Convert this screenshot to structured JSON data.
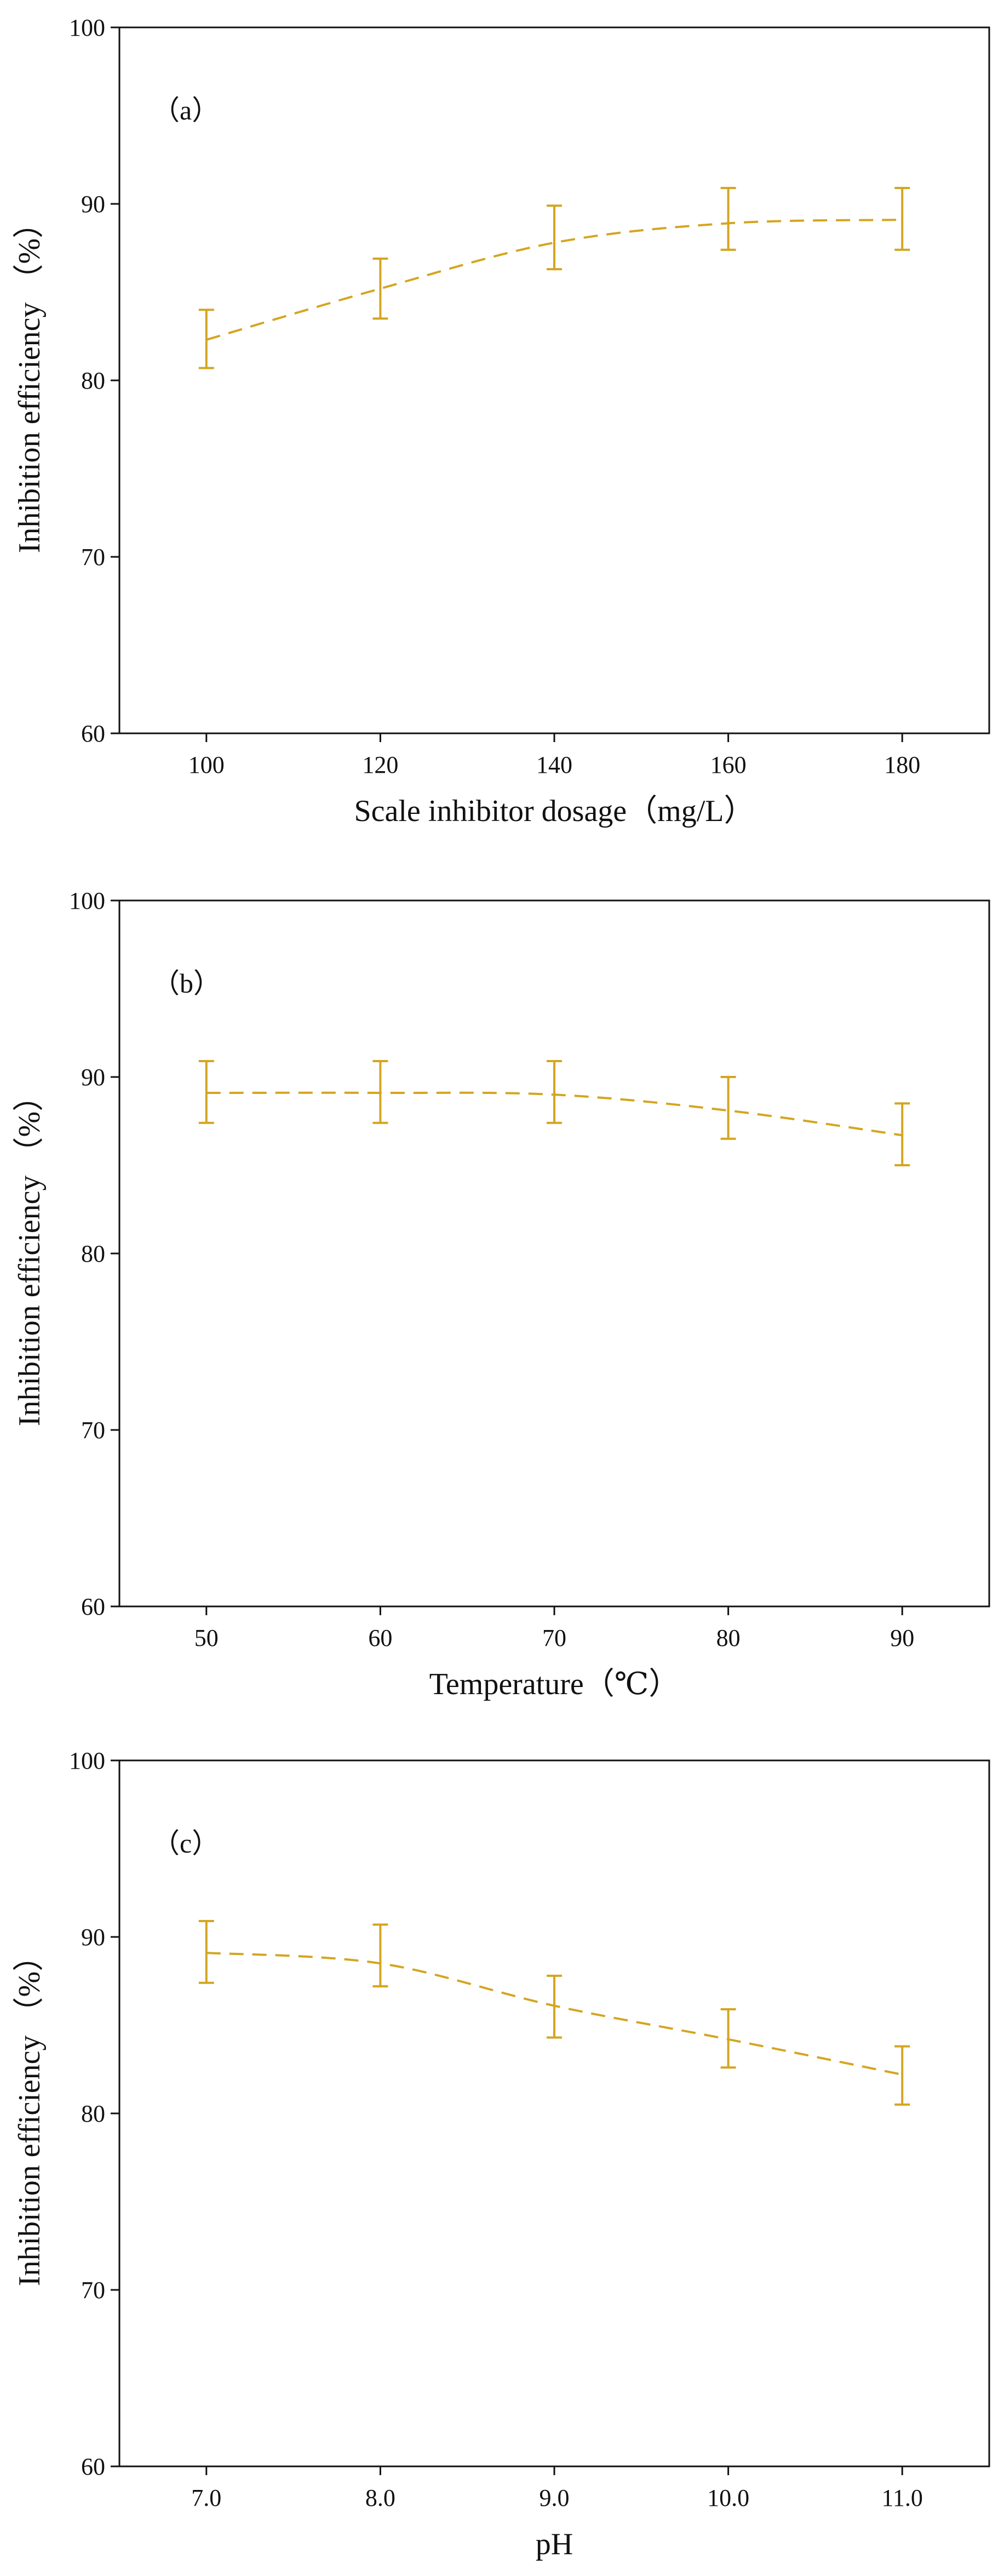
{
  "figure": {
    "line_color": "#D4A520",
    "axis_color": "#111111"
  },
  "chart_data": [
    {
      "type": "line",
      "panel_label": "（a）",
      "title": "",
      "xlabel": "Scale inhibitor dosage（mg/L）",
      "ylabel": "Inhibition efficiency （%）",
      "categories": [
        "100",
        "120",
        "140",
        "160",
        "180"
      ],
      "x": [
        100,
        120,
        140,
        160,
        180
      ],
      "xlim": [
        90,
        190
      ],
      "ylim": [
        60,
        100
      ],
      "yticks": [
        "60",
        "70",
        "80",
        "90",
        "100"
      ],
      "yvalues": [
        60,
        70,
        80,
        90,
        100
      ],
      "series": [
        {
          "name": "Inhibition efficiency",
          "values": [
            82.3,
            85.2,
            87.8,
            89.0,
            89.1
          ],
          "err_low": [
            80.7,
            83.5,
            86.3,
            87.4,
            87.4
          ],
          "err_high": [
            84.0,
            86.9,
            89.9,
            90.9,
            90.9
          ],
          "curve": [
            82.3,
            85.2,
            87.8,
            88.9,
            89.1
          ],
          "style": "dashed"
        }
      ]
    },
    {
      "type": "line",
      "panel_label": "（b）",
      "title": "",
      "xlabel": "Temperature（℃）",
      "ylabel": "Inhibition efficiency （%）",
      "categories": [
        "50",
        "60",
        "70",
        "80",
        "90"
      ],
      "x": [
        50,
        60,
        70,
        80,
        90
      ],
      "xlim": [
        45,
        95
      ],
      "ylim": [
        60,
        100
      ],
      "yticks": [
        "60",
        "70",
        "80",
        "90",
        "100"
      ],
      "yvalues": [
        60,
        70,
        80,
        90,
        100
      ],
      "series": [
        {
          "name": "Inhibition efficiency",
          "values": [
            89.1,
            89.1,
            89.0,
            88.2,
            86.7
          ],
          "err_low": [
            87.4,
            87.4,
            87.4,
            86.5,
            85.0
          ],
          "err_high": [
            90.9,
            90.9,
            90.9,
            90.0,
            88.5
          ],
          "curve": [
            89.1,
            89.1,
            89.0,
            88.1,
            86.7
          ],
          "style": "dashed"
        }
      ]
    },
    {
      "type": "line",
      "panel_label": "（c）",
      "title": "",
      "xlabel": "pH",
      "ylabel": "Inhibition efficiency （%）",
      "categories": [
        "7.0",
        "8.0",
        "9.0",
        "10.0",
        "11.0"
      ],
      "x": [
        7,
        8,
        9,
        10,
        11
      ],
      "xlim": [
        6.5,
        11.5
      ],
      "ylim": [
        60,
        100
      ],
      "yticks": [
        "60",
        "70",
        "80",
        "90",
        "100"
      ],
      "yvalues": [
        60,
        70,
        80,
        90,
        100
      ],
      "series": [
        {
          "name": "Inhibition efficiency",
          "values": [
            89.1,
            88.5,
            86.1,
            84.2,
            82.2
          ],
          "err_low": [
            87.4,
            87.2,
            84.3,
            82.6,
            80.5
          ],
          "err_high": [
            90.9,
            90.7,
            87.8,
            85.9,
            83.8
          ],
          "curve": [
            89.1,
            88.5,
            86.1,
            84.2,
            82.2
          ],
          "style": "dashed"
        }
      ]
    }
  ]
}
